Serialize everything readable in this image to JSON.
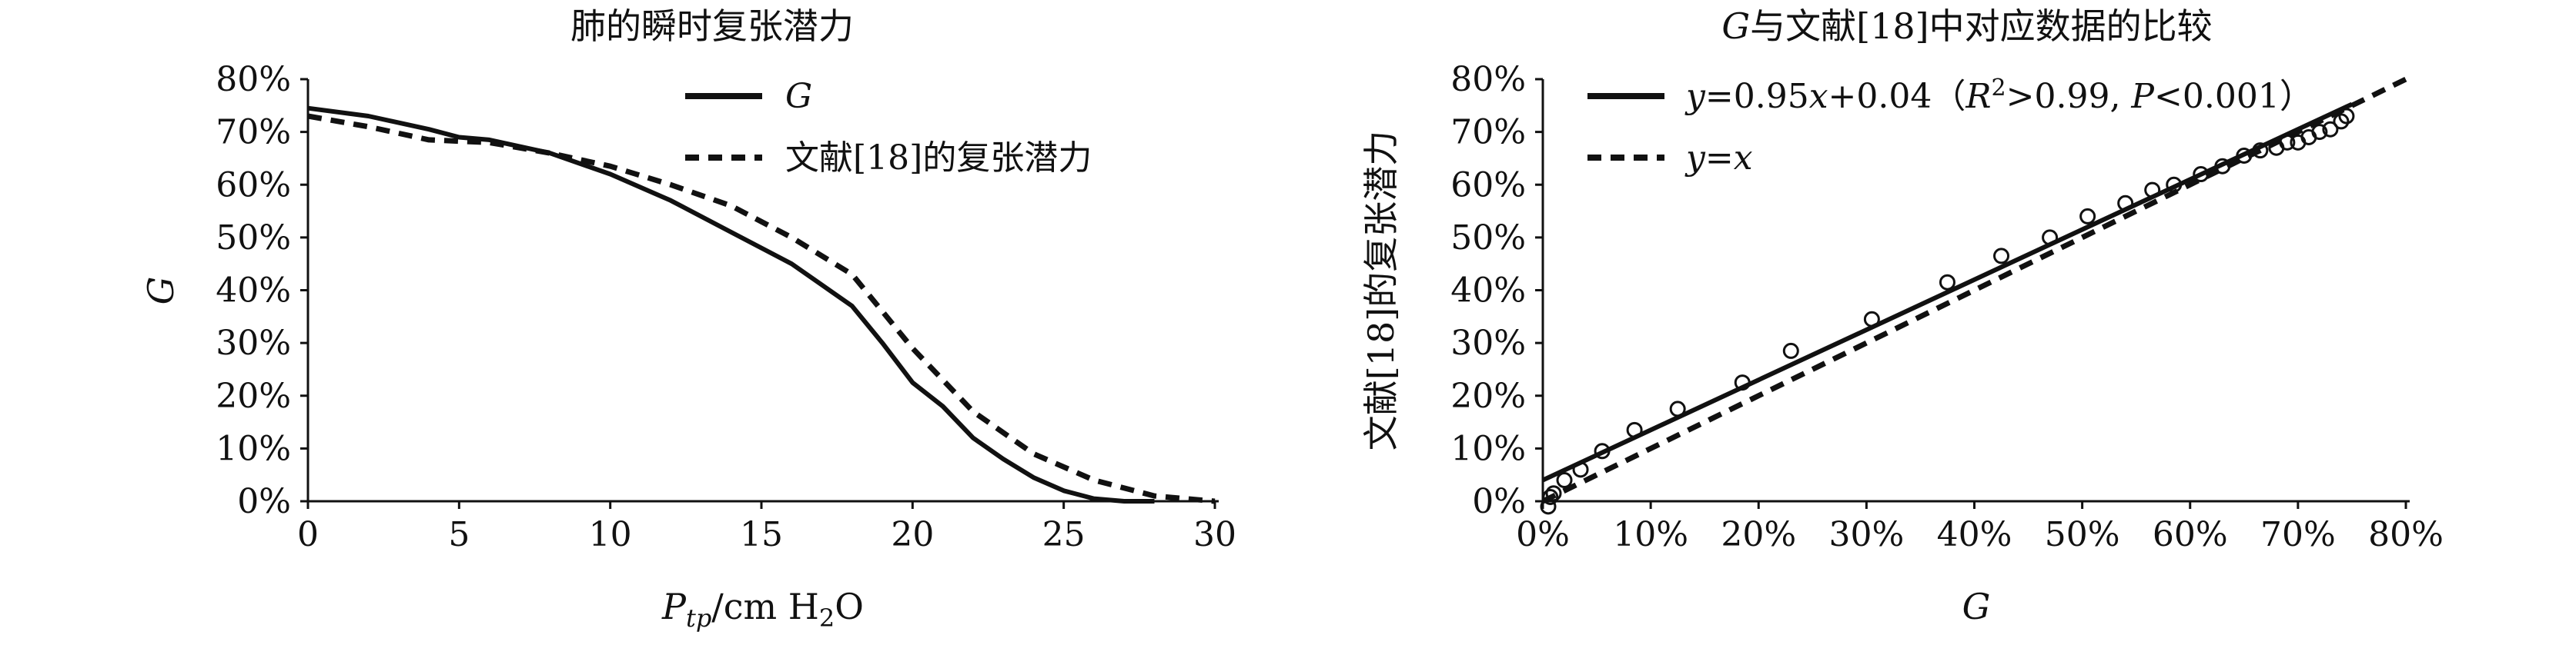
{
  "chart_data": [
    {
      "type": "line",
      "title": "肺的瞬时复张潜力",
      "xlabel_main": "P",
      "xlabel_sub": "tp",
      "xlabel_rest": "/cm H",
      "xlabel_sub2": "2",
      "xlabel_end": "O",
      "ylabel": "G",
      "xlim": [
        0,
        30
      ],
      "ylim": [
        0,
        80
      ],
      "xticks": [
        "0",
        "5",
        "10",
        "15",
        "20",
        "25",
        "30"
      ],
      "yticks": [
        "0%",
        "10%",
        "20%",
        "30%",
        "40%",
        "50%",
        "60%",
        "70%",
        "80%"
      ],
      "legend_position": "top-right",
      "series": [
        {
          "name": "G",
          "style": "solid",
          "x": [
            0,
            2,
            4,
            5,
            6,
            8,
            10,
            12,
            14,
            16,
            17,
            18,
            19,
            20,
            21,
            22,
            23,
            24,
            25,
            26,
            27,
            28
          ],
          "y": [
            74.5,
            73,
            70.5,
            69,
            68.5,
            66,
            62,
            57,
            51,
            45,
            41,
            37,
            30,
            22.5,
            18,
            12,
            8,
            4.5,
            2,
            0.5,
            0,
            0
          ]
        },
        {
          "name": "文献[18]的复张潜力",
          "style": "dashed",
          "x": [
            0,
            2,
            4,
            6,
            8,
            10,
            12,
            14,
            16,
            18,
            20,
            22,
            24,
            26,
            28,
            30
          ],
          "y": [
            73,
            71,
            68.5,
            68,
            66,
            63.5,
            60,
            56,
            50,
            43,
            29,
            17,
            9,
            4,
            1,
            0
          ]
        }
      ]
    },
    {
      "type": "scatter",
      "title": "G与文献[18]中对应数据的比较",
      "title_italic_prefix": "G",
      "title_rest": "与文献[18]中对应数据的比较",
      "xlabel": "G",
      "ylabel": "文献[18]的复张潜力",
      "xlim": [
        0,
        80
      ],
      "ylim": [
        0,
        80
      ],
      "xticks": [
        "0%",
        "10%",
        "20%",
        "30%",
        "40%",
        "50%",
        "60%",
        "70%",
        "80%"
      ],
      "yticks": [
        "0%",
        "10%",
        "20%",
        "30%",
        "40%",
        "50%",
        "60%",
        "70%",
        "80%"
      ],
      "legend_position": "top-left",
      "fit_line": {
        "name": "y=0.95x+0.04（R²>0.99, P<0.001）",
        "slope": 0.95,
        "intercept": 4,
        "x_range": [
          0,
          75
        ]
      },
      "identity_line": {
        "name": "y=x",
        "x_range": [
          0,
          80
        ]
      },
      "legend_fit": {
        "y": "y",
        "eq1": "=0.95",
        "x": "x",
        "eq2": "+0.04（",
        "R": "R",
        "sup": "2",
        "eq3": ">0.99, ",
        "P": "P",
        "eq4": "<0.001）"
      },
      "legend_id": {
        "y": "y",
        "eq": "=",
        "x": "x"
      },
      "points": {
        "x": [
          0.5,
          0.7,
          1.0,
          2.0,
          3.5,
          5.5,
          8.5,
          12.5,
          18.5,
          23,
          30.5,
          37.5,
          42.5,
          47,
          50.5,
          54,
          56.5,
          58.5,
          61,
          63,
          65,
          66.5,
          68,
          69,
          70,
          71,
          72,
          73,
          74,
          74.5
        ],
        "y": [
          -1,
          0.8,
          1.5,
          4,
          6,
          9.5,
          13.5,
          17.5,
          22.5,
          28.5,
          34.5,
          41.5,
          46.5,
          50,
          54,
          56.5,
          59,
          60,
          62,
          63.5,
          65.5,
          66.5,
          67,
          68,
          68,
          69,
          70,
          70.5,
          72,
          73
        ]
      }
    }
  ]
}
